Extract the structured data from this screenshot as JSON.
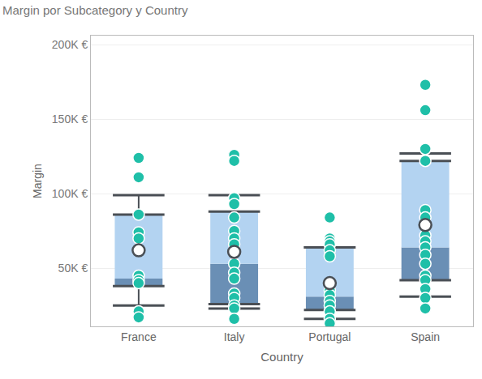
{
  "chart_data": {
    "type": "box",
    "title": "Margin por Subcategory y Country",
    "x_label": "Country",
    "y_label": "Margin",
    "categories": [
      "France",
      "Italy",
      "Portugal",
      "Spain"
    ],
    "points": [
      [
        124000,
        111000,
        86000,
        74000,
        70000,
        45000,
        42000,
        40000,
        21000,
        17000
      ],
      [
        126000,
        122000,
        97000,
        93000,
        84000,
        75000,
        70000,
        66000,
        53000,
        47000,
        43000,
        33000,
        30000,
        25000,
        23000,
        16000
      ],
      [
        84000,
        70000,
        68000,
        66000,
        62000,
        58000,
        35000,
        32000,
        28000,
        25000,
        21000,
        16000,
        13000
      ],
      [
        173000,
        156000,
        130000,
        122000,
        89000,
        84000,
        72000,
        68000,
        64000,
        59000,
        53000,
        45000,
        42000,
        36000,
        30000,
        23000
      ]
    ],
    "lower_whisker": [
      25000,
      23000,
      16000,
      31000
    ],
    "q1": [
      38000,
      26000,
      22000,
      42000
    ],
    "median": [
      43000,
      53000,
      31000,
      64000
    ],
    "q3": [
      86000,
      88000,
      64000,
      122000
    ],
    "upper_whisker": [
      99000,
      99000,
      64000,
      127000
    ],
    "mean": [
      62000,
      61000,
      40000,
      79000
    ],
    "color": "#1fbfa8",
    "ylim": [
      11000,
      206000
    ],
    "yticks": [
      {
        "value": 50000,
        "label": "50K €"
      },
      {
        "value": 100000,
        "label": "100K €"
      },
      {
        "value": 150000,
        "label": "150K €"
      },
      {
        "value": 200000,
        "label": "200K €"
      }
    ],
    "grid": true
  }
}
